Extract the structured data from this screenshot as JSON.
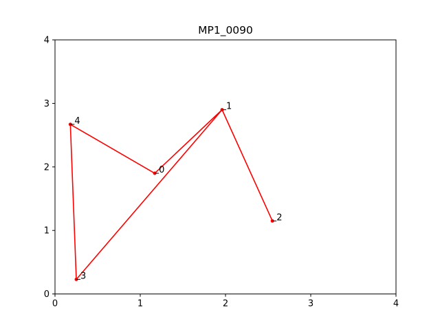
{
  "chart_data": {
    "type": "line",
    "title": "MP1_0090",
    "xlabel": "",
    "ylabel": "",
    "xlim": [
      0,
      4
    ],
    "ylim": [
      0,
      4
    ],
    "xticks": [
      "0",
      "1",
      "2",
      "3",
      "4"
    ],
    "yticks": [
      "0",
      "1",
      "2",
      "3",
      "4"
    ],
    "grid": false,
    "color": "#ff0000",
    "points": [
      {
        "label": "0",
        "x": 1.17,
        "y": 1.9
      },
      {
        "label": "1",
        "x": 1.96,
        "y": 2.9
      },
      {
        "label": "2",
        "x": 2.55,
        "y": 1.15
      },
      {
        "label": "3",
        "x": 0.25,
        "y": 0.23
      },
      {
        "label": "4",
        "x": 0.18,
        "y": 2.67
      }
    ],
    "path_order": [
      "2",
      "1",
      "3",
      "4",
      "0",
      "1"
    ]
  }
}
